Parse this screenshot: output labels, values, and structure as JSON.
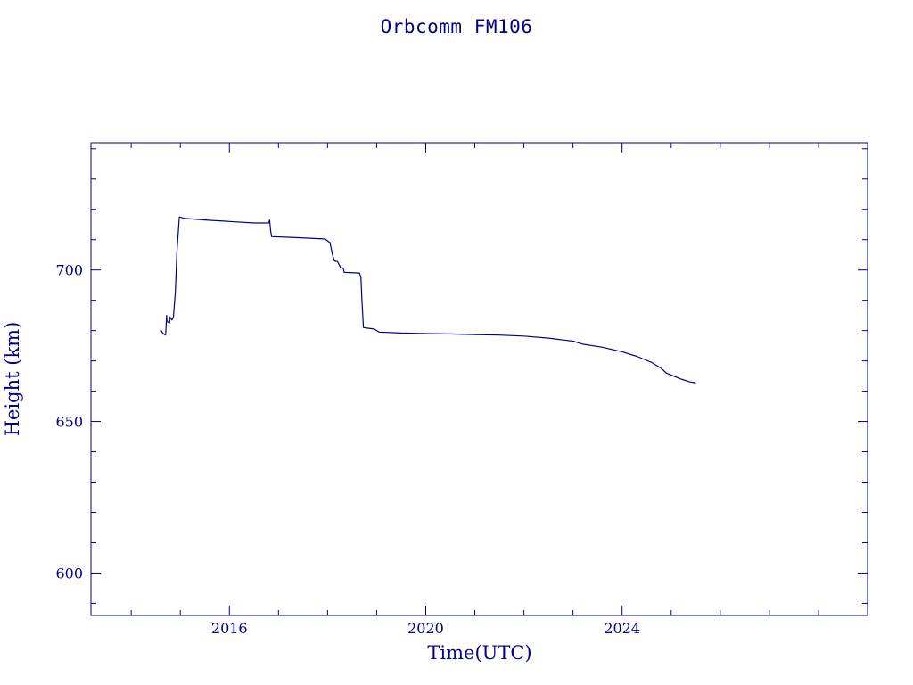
{
  "chart_data": {
    "type": "line",
    "title": "Orbcomm FM106",
    "xlabel": "Time(UTC)",
    "ylabel": "Height (km)",
    "xlim": [
      2013.18,
      2029.0
    ],
    "ylim": [
      586,
      742
    ],
    "x_ticks": [
      2016,
      2020,
      2024
    ],
    "x_tick_labels": [
      "2016",
      "2020",
      "2024"
    ],
    "y_ticks": [
      600,
      650,
      700
    ],
    "y_tick_labels": [
      "600",
      "650",
      "700"
    ],
    "grid": false,
    "series": [
      {
        "color": "#00008b",
        "points": [
          [
            2014.61,
            680.0
          ],
          [
            2014.65,
            679.0
          ],
          [
            2014.7,
            678.5
          ],
          [
            2014.71,
            681.0
          ],
          [
            2014.72,
            685.0
          ],
          [
            2014.73,
            683.0
          ],
          [
            2014.78,
            682.5
          ],
          [
            2014.79,
            684.5
          ],
          [
            2014.83,
            683.5
          ],
          [
            2014.86,
            684.5
          ],
          [
            2014.9,
            693.0
          ],
          [
            2014.93,
            705.5
          ],
          [
            2014.98,
            717.5
          ],
          [
            2015.1,
            717.0
          ],
          [
            2015.5,
            716.5
          ],
          [
            2016.0,
            716.0
          ],
          [
            2016.5,
            715.5
          ],
          [
            2016.8,
            715.5
          ],
          [
            2016.82,
            716.5
          ],
          [
            2016.84,
            713.0
          ],
          [
            2016.86,
            711.0
          ],
          [
            2017.2,
            710.8
          ],
          [
            2017.6,
            710.5
          ],
          [
            2017.95,
            710.2
          ],
          [
            2018.05,
            709.0
          ],
          [
            2018.1,
            705.0
          ],
          [
            2018.14,
            703.0
          ],
          [
            2018.2,
            702.8
          ],
          [
            2018.26,
            701.0
          ],
          [
            2018.32,
            700.5
          ],
          [
            2018.34,
            699.2
          ],
          [
            2018.65,
            699.0
          ],
          [
            2018.68,
            697.5
          ],
          [
            2018.7,
            690.0
          ],
          [
            2018.73,
            681.0
          ],
          [
            2018.8,
            680.8
          ],
          [
            2018.95,
            680.5
          ],
          [
            2019.05,
            679.5
          ],
          [
            2019.5,
            679.2
          ],
          [
            2020.0,
            679.0
          ],
          [
            2020.5,
            678.9
          ],
          [
            2021.0,
            678.7
          ],
          [
            2021.5,
            678.5
          ],
          [
            2022.0,
            678.2
          ],
          [
            2022.5,
            677.5
          ],
          [
            2023.0,
            676.5
          ],
          [
            2023.2,
            675.5
          ],
          [
            2023.6,
            674.5
          ],
          [
            2024.0,
            673.0
          ],
          [
            2024.3,
            671.5
          ],
          [
            2024.6,
            669.5
          ],
          [
            2024.8,
            667.5
          ],
          [
            2024.9,
            666.0
          ],
          [
            2025.2,
            664.0
          ],
          [
            2025.4,
            663.0
          ],
          [
            2025.5,
            662.8
          ]
        ]
      }
    ]
  }
}
